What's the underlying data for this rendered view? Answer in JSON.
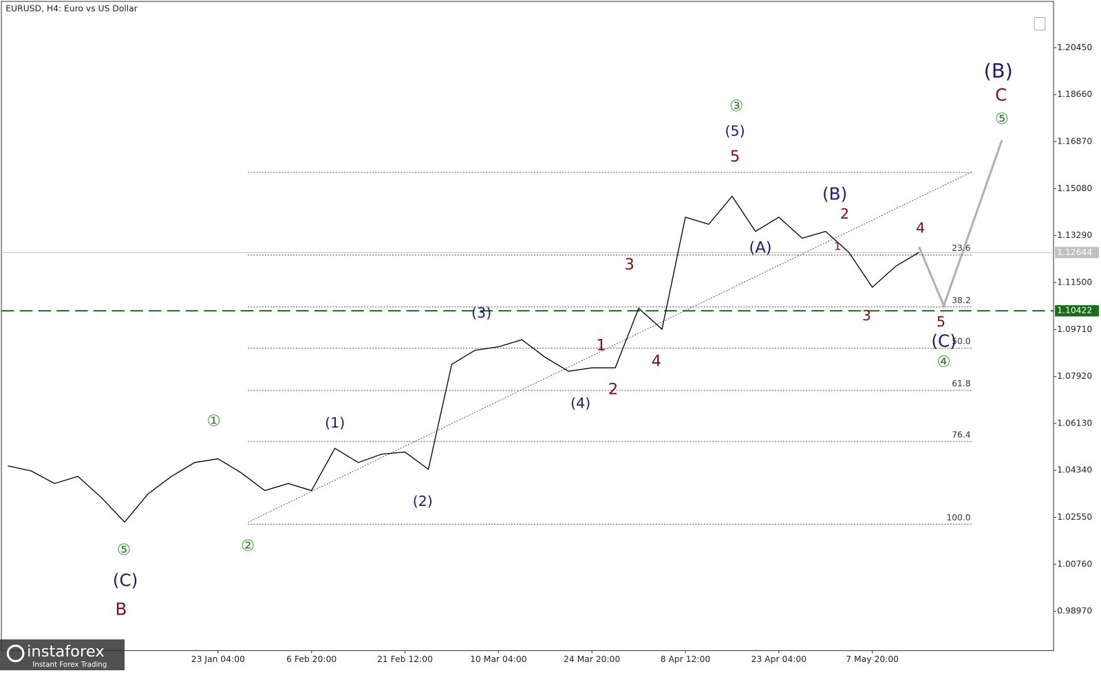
{
  "chart_data": {
    "type": "line",
    "title": "EURUSD, H4:  Euro vs US Dollar",
    "categories": [
      null,
      null,
      null,
      null,
      null,
      null,
      null,
      null,
      null,
      "23 Jan 04:00",
      null,
      null,
      null,
      "6 Feb 20:00",
      null,
      null,
      null,
      "21 Feb 12:00",
      null,
      null,
      null,
      "10 Mar 04:00",
      null,
      null,
      null,
      "24 Mar 20:00",
      null,
      null,
      null,
      "8 Apr 12:00",
      null,
      null,
      null,
      "23 Apr 04:00",
      null,
      null,
      null,
      "7 May 20:00",
      null,
      null
    ],
    "series": [
      {
        "color": "#000000",
        "values": [
          1.0451,
          1.0432,
          1.0384,
          1.0411,
          1.0331,
          1.0237,
          1.0344,
          1.0411,
          1.0464,
          1.0478,
          1.0424,
          1.0357,
          1.0384,
          1.0357,
          1.0518,
          1.0464,
          1.0496,
          1.0504,
          1.0438,
          1.0838,
          1.0892,
          1.0905,
          1.0932,
          1.0865,
          1.0812,
          1.0825,
          1.0825,
          1.1052,
          1.0972,
          1.1399,
          1.1372,
          1.1479,
          1.1345,
          1.1399,
          1.1319,
          1.1345,
          1.1265,
          1.1132,
          1.1212,
          1.1265
        ]
      }
    ],
    "ylim": [
      0.9747,
      1.2227
    ],
    "yticks": [
      {
        "value": 1.2045,
        "label": "1.20450"
      },
      {
        "value": 1.1866,
        "label": "1.18660"
      },
      {
        "value": 1.1687,
        "label": "1.16870"
      },
      {
        "value": 1.1508,
        "label": "1.15080"
      },
      {
        "value": 1.1329,
        "label": "1.13290"
      },
      {
        "value": 1.115,
        "label": "1.11500"
      },
      {
        "value": 1.0971,
        "label": "1.09710"
      },
      {
        "value": 1.0792,
        "label": "1.07920"
      },
      {
        "value": 1.0613,
        "label": "1.06130"
      },
      {
        "value": 1.0434,
        "label": "1.04340"
      },
      {
        "value": 1.0255,
        "label": "1.02550"
      },
      {
        "value": 1.0076,
        "label": "1.00760"
      },
      {
        "value": 0.9897,
        "label": "0.98970"
      }
    ],
    "current_price": {
      "value": 1.12644,
      "label": "1.12644",
      "color": "#c0c0c0"
    },
    "support": {
      "value": 1.10422,
      "label": "1.10422",
      "color": "#1a6b1a"
    },
    "fib_levels": [
      {
        "value": 1.1255,
        "label": "23.6"
      },
      {
        "value": 1.1057,
        "label": "38.2"
      },
      {
        "value": 1.09,
        "label": "50.0"
      },
      {
        "value": 1.0739,
        "label": "61.8"
      },
      {
        "value": 1.0544,
        "label": "76.4"
      },
      {
        "value": 1.0229,
        "label": "100.0"
      }
    ],
    "wave_labels": [
      {
        "text": "①",
        "color": "#2e8b2e"
      },
      {
        "text": "⑤",
        "color": "#2e8b2e"
      },
      {
        "text": "(C)",
        "color": "#1c1c6e"
      },
      {
        "text": "B",
        "color": "#7a0f0f"
      },
      {
        "text": "②",
        "color": "#2e8b2e"
      },
      {
        "text": "(1)",
        "color": "#1c1c6e"
      },
      {
        "text": "(2)",
        "color": "#1c1c6e"
      },
      {
        "text": "(3)",
        "color": "#1c1c6e"
      },
      {
        "text": "(4)",
        "color": "#1c1c6e"
      },
      {
        "text": "1",
        "color": "#7a0f0f"
      },
      {
        "text": "2",
        "color": "#7a0f0f"
      },
      {
        "text": "3",
        "color": "#7a0f0f"
      },
      {
        "text": "4",
        "color": "#7a0f0f"
      },
      {
        "text": "③",
        "color": "#2e8b2e"
      },
      {
        "text": "(5)",
        "color": "#1c1c6e"
      },
      {
        "text": "5",
        "color": "#7a0f0f"
      },
      {
        "text": "(A)",
        "color": "#1c1c6e"
      },
      {
        "text": "(B)",
        "color": "#1c1c6e"
      },
      {
        "text": "2",
        "color": "#7a0f0f"
      },
      {
        "text": "1",
        "color": "#7a0f0f"
      },
      {
        "text": "3",
        "color": "#7a0f0f"
      },
      {
        "text": "4",
        "color": "#7a0f0f"
      },
      {
        "text": "5",
        "color": "#7a0f0f"
      },
      {
        "text": "(C)",
        "color": "#1c1c6e"
      },
      {
        "text": "④",
        "color": "#2e8b2e"
      },
      {
        "text": "(B)",
        "color": "#1c1c6e"
      },
      {
        "text": "C",
        "color": "#7a0f0f"
      },
      {
        "text": "⑤",
        "color": "#2e8b2e"
      }
    ],
    "logo": {
      "name": "instaforex",
      "tagline": "Instant Forex Trading"
    }
  }
}
